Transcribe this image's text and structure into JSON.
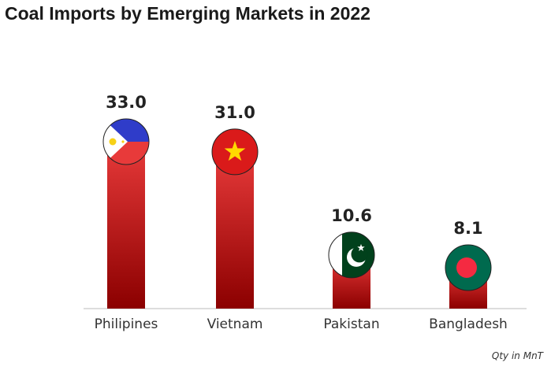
{
  "page": {
    "title": "Coal Imports by Emerging Markets in 2022",
    "note": "Qty in MnT"
  },
  "chart_data": {
    "type": "bar",
    "title": "Coal Imports by Emerging Markets in 2022",
    "categories": [
      "Philipines",
      "Vietnam",
      "Pakistan",
      "Bangladesh"
    ],
    "values": [
      33.0,
      31.0,
      10.6,
      8.1
    ],
    "value_labels": [
      "33.0",
      "31.0",
      "10.6",
      "8.1"
    ],
    "ylim": [
      0,
      33
    ],
    "grid": false,
    "legend": "none",
    "bar_gradient": [
      "#e83a3a",
      "#8b0000"
    ],
    "flags": [
      "philippines-flag-icon",
      "vietnam-flag-icon",
      "pakistan-flag-icon",
      "bangladesh-flag-icon"
    ]
  }
}
